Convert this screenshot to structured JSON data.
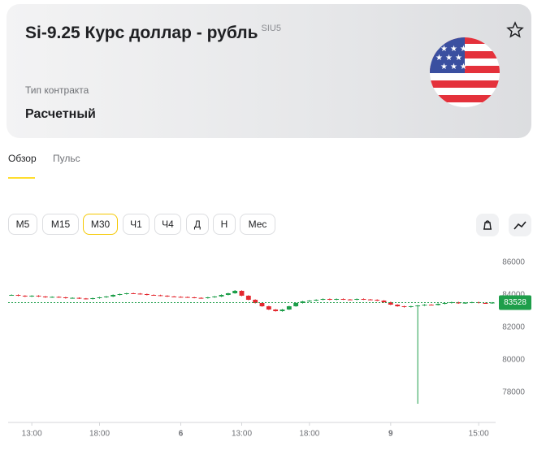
{
  "header": {
    "title": "Si-9.25 Курс доллар - рубль",
    "ticker": "SIU5",
    "contract_label": "Тип контракта",
    "contract_value": "Расчетный"
  },
  "tabs": [
    "Обзор",
    "Пульс"
  ],
  "timeframes": [
    "M5",
    "M15",
    "M30",
    "Ч1",
    "Ч4",
    "Д",
    "Н",
    "Мес"
  ],
  "chart_data": {
    "type": "candlestick",
    "up_color": "#1e9e4a",
    "down_color": "#e3282f",
    "ylim": [
      76200,
      87000
    ],
    "yticks": [
      78000,
      80000,
      82000,
      84000,
      86000
    ],
    "last_price": 83528,
    "categories": [
      null,
      null,
      null,
      "13:00",
      null,
      null,
      null,
      null,
      null,
      null,
      null,
      null,
      null,
      "18:00",
      null,
      null,
      null,
      null,
      null,
      null,
      null,
      null,
      null,
      null,
      null,
      "6",
      null,
      null,
      null,
      null,
      null,
      null,
      null,
      null,
      "13:00",
      null,
      null,
      null,
      null,
      null,
      null,
      null,
      null,
      null,
      "18:00",
      null,
      null,
      null,
      null,
      null,
      null,
      null,
      null,
      null,
      null,
      null,
      "9",
      null,
      null,
      null,
      null,
      null,
      null,
      null,
      null,
      null,
      null,
      null,
      null,
      "15:00",
      null,
      null
    ],
    "open": [
      83980,
      84000,
      83950,
      83900,
      83950,
      83900,
      83850,
      83880,
      83850,
      83800,
      83820,
      83780,
      83750,
      83800,
      83850,
      83900,
      84000,
      84050,
      84100,
      84080,
      84050,
      84000,
      83980,
      83950,
      83900,
      83880,
      83870,
      83850,
      83820,
      83800,
      83850,
      83900,
      84000,
      84100,
      84250,
      83950,
      83700,
      83500,
      83300,
      83100,
      83000,
      83100,
      83300,
      83500,
      83600,
      83650,
      83700,
      83750,
      83700,
      83750,
      83720,
      83700,
      83750,
      83720,
      83700,
      83650,
      83550,
      83400,
      83300,
      83250,
      83300,
      83350,
      83400,
      83380,
      83450,
      83500,
      83550,
      83480,
      83520,
      83550,
      83500,
      83480
    ],
    "close": [
      84000,
      83950,
      83900,
      83950,
      83900,
      83850,
      83880,
      83850,
      83800,
      83820,
      83780,
      83750,
      83800,
      83850,
      83900,
      84000,
      84050,
      84100,
      84080,
      84050,
      84000,
      83980,
      83950,
      83900,
      83880,
      83870,
      83850,
      83820,
      83800,
      83850,
      83900,
      84000,
      84100,
      84250,
      83950,
      83700,
      83500,
      83300,
      83100,
      83000,
      83100,
      83300,
      83500,
      83600,
      83650,
      83700,
      83750,
      83700,
      83750,
      83720,
      83700,
      83750,
      83720,
      83700,
      83650,
      83550,
      83400,
      83300,
      83250,
      83300,
      83350,
      83400,
      83380,
      83450,
      83500,
      83550,
      83480,
      83520,
      83550,
      83500,
      83480,
      83528
    ],
    "high": [
      84030,
      84030,
      83980,
      83980,
      83980,
      83930,
      83910,
      83910,
      83880,
      83850,
      83850,
      83810,
      83830,
      83880,
      83930,
      84030,
      84080,
      84130,
      84130,
      84110,
      84080,
      84030,
      84010,
      83980,
      83930,
      83910,
      83900,
      83880,
      83850,
      83880,
      83930,
      84030,
      84130,
      84300,
      84280,
      83980,
      83730,
      83530,
      83330,
      83130,
      83130,
      83330,
      83530,
      83630,
      83680,
      83730,
      83780,
      83780,
      83780,
      83780,
      83750,
      83780,
      83780,
      83750,
      83730,
      83680,
      83580,
      83430,
      83330,
      83330,
      83380,
      83430,
      83430,
      83480,
      83530,
      83580,
      83580,
      83550,
      83580,
      83580,
      83530,
      83558
    ],
    "low": [
      83950,
      83920,
      83870,
      83870,
      83870,
      83820,
      83820,
      83820,
      83770,
      83770,
      83750,
      83720,
      83720,
      83770,
      83820,
      83870,
      83970,
      84020,
      84050,
      84020,
      83970,
      83950,
      83920,
      83870,
      83850,
      83840,
      83820,
      83790,
      83770,
      83770,
      83820,
      83870,
      83970,
      84070,
      83920,
      83670,
      83470,
      83270,
      83070,
      82970,
      82970,
      83070,
      83270,
      83470,
      83570,
      83620,
      83670,
      83670,
      83670,
      83690,
      83670,
      83670,
      83690,
      83670,
      83620,
      83520,
      83370,
      83270,
      83220,
      83220,
      77300,
      83320,
      83350,
      83350,
      83420,
      83470,
      83450,
      83450,
      83490,
      83470,
      83450,
      83450
    ]
  }
}
